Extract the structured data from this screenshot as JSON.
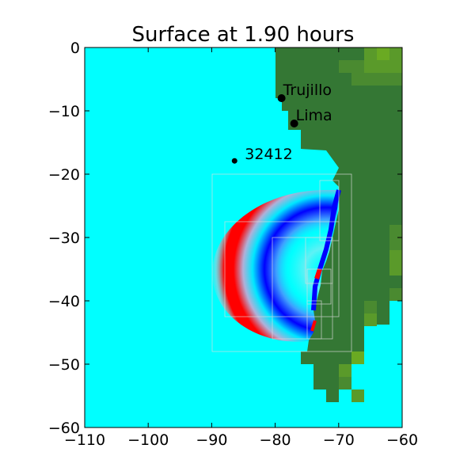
{
  "chart_data": {
    "type": "heatmap",
    "title": "Surface at 1.90 hours",
    "xlabel": "",
    "ylabel": "",
    "xlim": [
      -110,
      -60
    ],
    "ylim": [
      -60,
      0
    ],
    "x_ticks": [
      -110,
      -100,
      -90,
      -80,
      -70,
      -60
    ],
    "y_ticks": [
      0,
      -10,
      -20,
      -30,
      -40,
      -50,
      -60
    ],
    "x_tick_labels": [
      "−110",
      "−100",
      "−90",
      "−80",
      "−70",
      "−60"
    ],
    "y_tick_labels": [
      "0",
      "−10",
      "−20",
      "−30",
      "−40",
      "−50",
      "−60"
    ],
    "grid": false,
    "locations": [
      {
        "label": "Trujillo",
        "x": -79,
        "y": -8
      },
      {
        "label": "Lima",
        "x": -77,
        "y": -12
      },
      {
        "label": "32412",
        "x": -86.4,
        "y": -17.9
      }
    ],
    "colors": {
      "ocean": "#00ffff",
      "land": "#347734",
      "land_highlands": "#5a9a2a",
      "wave_crest": "#ff0000",
      "wave_trough": "#0000ff",
      "grid_patch_outline": "#dddddd"
    }
  }
}
